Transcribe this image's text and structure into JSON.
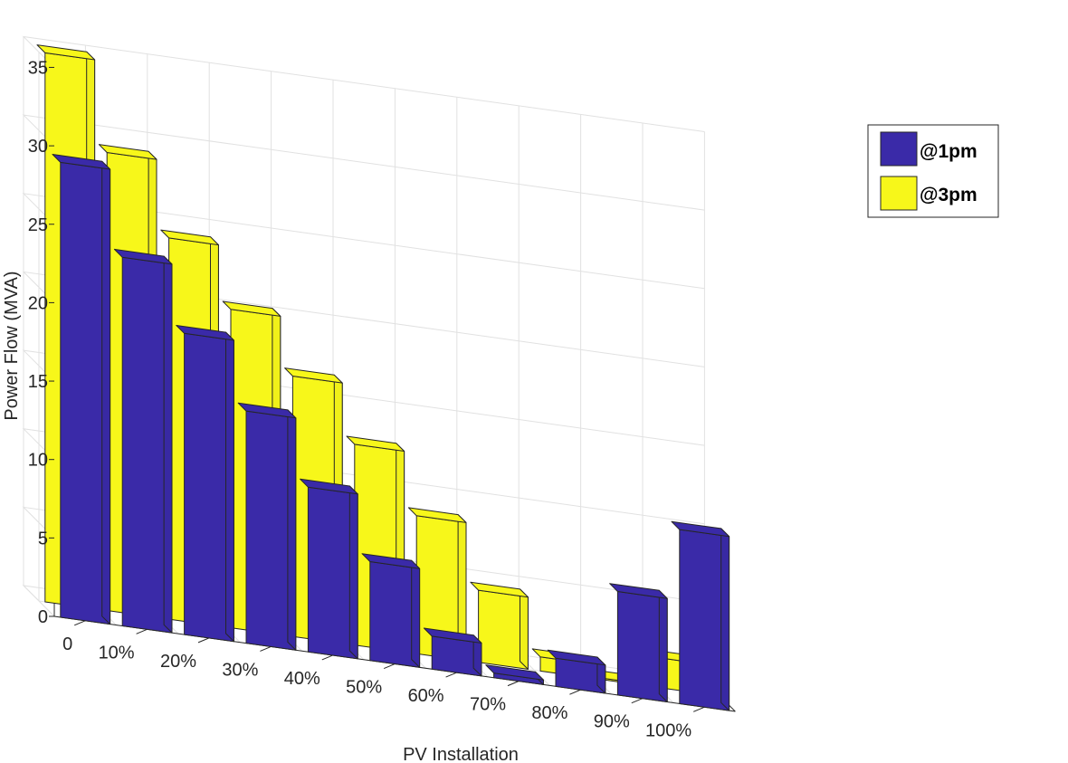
{
  "chart_data": {
    "type": "bar",
    "title": "",
    "xlabel": "PV Installation",
    "ylabel": "Power Flow (MVA)",
    "categories": [
      "0",
      "10%",
      "20%",
      "30%",
      "40%",
      "50%",
      "60%",
      "70%",
      "80%",
      "90%",
      "100%"
    ],
    "yticks": [
      "0",
      "5",
      "10",
      "15",
      "20",
      "25",
      "30",
      "35"
    ],
    "ylim": [
      0,
      35
    ],
    "grid": true,
    "legend_position": "top-right",
    "series": [
      {
        "name": "@1pm",
        "color": "#3a2aa8",
        "values": [
          29.0,
          23.5,
          19.2,
          14.8,
          10.5,
          6.3,
          2.1,
          0.3,
          1.8,
          6.6,
          11.1
        ]
      },
      {
        "name": "@3pm",
        "color": "#f7f71a",
        "values": [
          35.0,
          29.2,
          24.3,
          20.3,
          16.6,
          12.8,
          8.8,
          4.6,
          0.9,
          0.1,
          1.9
        ]
      }
    ]
  }
}
